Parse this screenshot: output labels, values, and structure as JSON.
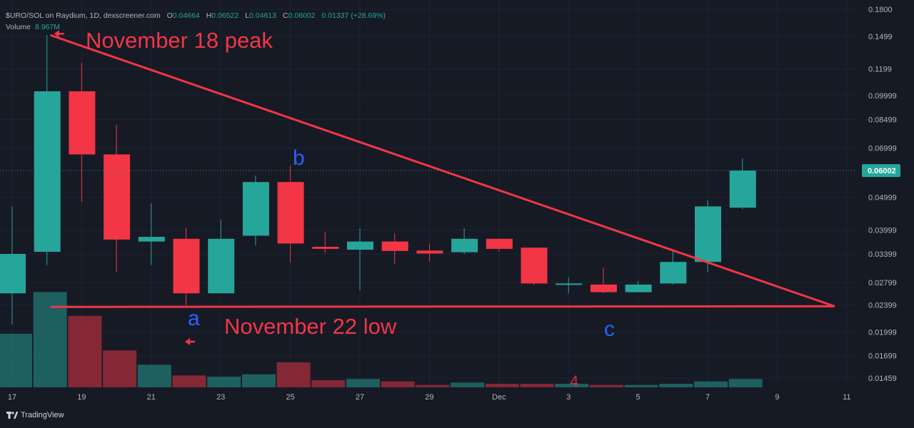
{
  "header": {
    "symbol_line": "$URO/SOL on Raydium, 1D, dexscreener.com",
    "open_label": "O",
    "open_value": "0.04664",
    "high_label": "H",
    "high_value": "0.06522",
    "low_label": "L",
    "low_value": "0.04613",
    "close_label": "C",
    "close_value": "0.06002",
    "change_value": "0.01337 (+28.69%)",
    "volume_label": "Volume",
    "volume_value": "8.967M"
  },
  "branding": {
    "text": "TradingView",
    "icon": "tradingview-logo-icon"
  },
  "colors": {
    "up": "#26a69a",
    "down": "#f23645",
    "annotation": "#f23645",
    "letters": "#2962ff",
    "background": "#161a25"
  },
  "chart_data": {
    "type": "candlestick",
    "scale": "log",
    "ylim": [
      0.0137,
      0.19
    ],
    "y_ticks": [
      "0.1800",
      "0.1499",
      "0.1199",
      "0.09999",
      "0.08499",
      "0.06999",
      "0.04999",
      "0.03999",
      "0.03399",
      "0.02799",
      "0.02399",
      "0.01999",
      "0.01699",
      "0.01459"
    ],
    "x_tick_labels": [
      "17",
      "19",
      "21",
      "23",
      "25",
      "27",
      "29",
      "Dec",
      "3",
      "5",
      "7",
      "9",
      "11"
    ],
    "last_price_label": "0.06002",
    "candles": [
      {
        "date": "Nov 17",
        "open": 0.026,
        "high": 0.047,
        "low": 0.021,
        "close": 0.034
      },
      {
        "date": "Nov 18",
        "open": 0.0345,
        "high": 0.151,
        "low": 0.0315,
        "close": 0.103
      },
      {
        "date": "Nov 19",
        "open": 0.103,
        "high": 0.125,
        "low": 0.0485,
        "close": 0.067
      },
      {
        "date": "Nov 20",
        "open": 0.067,
        "high": 0.082,
        "low": 0.03,
        "close": 0.0375
      },
      {
        "date": "Nov 21",
        "open": 0.037,
        "high": 0.048,
        "low": 0.0315,
        "close": 0.0382
      },
      {
        "date": "Nov 22",
        "open": 0.0377,
        "high": 0.0407,
        "low": 0.024,
        "close": 0.026
      },
      {
        "date": "Nov 23",
        "open": 0.026,
        "high": 0.043,
        "low": 0.026,
        "close": 0.0377
      },
      {
        "date": "Nov 24",
        "open": 0.0385,
        "high": 0.058,
        "low": 0.036,
        "close": 0.0555
      },
      {
        "date": "Nov 25",
        "open": 0.0555,
        "high": 0.062,
        "low": 0.032,
        "close": 0.0365
      },
      {
        "date": "Nov 26",
        "open": 0.0357,
        "high": 0.0395,
        "low": 0.0342,
        "close": 0.0352
      },
      {
        "date": "Nov 27",
        "open": 0.035,
        "high": 0.0405,
        "low": 0.0265,
        "close": 0.037
      },
      {
        "date": "Nov 28",
        "open": 0.037,
        "high": 0.0392,
        "low": 0.0318,
        "close": 0.0347
      },
      {
        "date": "Nov 29",
        "open": 0.0348,
        "high": 0.0365,
        "low": 0.0322,
        "close": 0.0341
      },
      {
        "date": "Nov 30",
        "open": 0.0344,
        "high": 0.0405,
        "low": 0.034,
        "close": 0.0377
      },
      {
        "date": "Dec 1",
        "open": 0.0377,
        "high": 0.0377,
        "low": 0.0345,
        "close": 0.0352
      },
      {
        "date": "Dec 2",
        "open": 0.0355,
        "high": 0.0355,
        "low": 0.0275,
        "close": 0.0278
      },
      {
        "date": "Dec 3",
        "open": 0.0277,
        "high": 0.029,
        "low": 0.026,
        "close": 0.0278
      },
      {
        "date": "Dec 4",
        "open": 0.0276,
        "high": 0.031,
        "low": 0.026,
        "close": 0.0262
      },
      {
        "date": "Dec 5",
        "open": 0.0262,
        "high": 0.0283,
        "low": 0.0262,
        "close": 0.0276
      },
      {
        "date": "Dec 6",
        "open": 0.0278,
        "high": 0.0348,
        "low": 0.0276,
        "close": 0.0322
      },
      {
        "date": "Dec 7",
        "open": 0.0322,
        "high": 0.049,
        "low": 0.03,
        "close": 0.047
      },
      {
        "date": "Dec 8",
        "open": 0.0466,
        "high": 0.0652,
        "low": 0.0461,
        "close": 0.06
      }
    ],
    "volume_relative": [
      0.45,
      0.8,
      0.6,
      0.31,
      0.19,
      0.1,
      0.09,
      0.11,
      0.21,
      0.06,
      0.07,
      0.05,
      0.02,
      0.04,
      0.03,
      0.03,
      0.03,
      0.02,
      0.02,
      0.03,
      0.05,
      0.07
    ],
    "annotations": {
      "peak_label": "November 18 peak",
      "low_label": "November 22 low",
      "wave_a": "a",
      "wave_b": "b",
      "wave_c": "c",
      "stray_mark": "4"
    }
  }
}
